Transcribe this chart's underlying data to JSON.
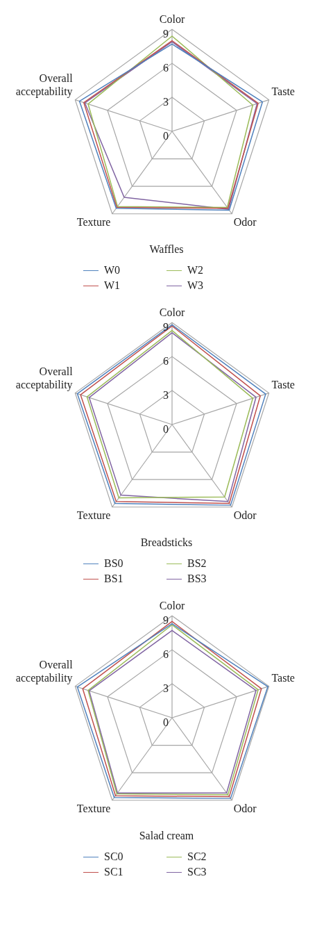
{
  "chart_data": [
    {
      "type": "radar",
      "title": "Waffles",
      "categories": [
        "Color",
        "Taste",
        "Odor",
        "Texture",
        "Overall acceptability"
      ],
      "ylim": [
        0,
        9
      ],
      "yticks": [
        0,
        3,
        6,
        9
      ],
      "legend": "bottom",
      "marker": "none",
      "series": [
        {
          "name": "W0",
          "color": "#4f81bd",
          "values": [
            7.7,
            8.4,
            8.6,
            8.4,
            8.6
          ]
        },
        {
          "name": "W1",
          "color": "#c0504d",
          "values": [
            8.0,
            8.0,
            8.4,
            8.3,
            8.2
          ]
        },
        {
          "name": "W2",
          "color": "#9bbb59",
          "values": [
            8.4,
            7.5,
            8.3,
            8.2,
            7.8
          ]
        },
        {
          "name": "W3",
          "color": "#8064a2",
          "values": [
            7.9,
            7.9,
            8.5,
            7.2,
            8.1
          ]
        }
      ]
    },
    {
      "type": "radar",
      "title": "Breadsticks",
      "categories": [
        "Color",
        "Taste",
        "Odor",
        "Texture",
        "Overall acceptability"
      ],
      "ylim": [
        0,
        9
      ],
      "yticks": [
        0,
        3,
        6,
        9
      ],
      "legend": "bottom",
      "marker": "none",
      "series": [
        {
          "name": "BS0",
          "color": "#4f81bd",
          "values": [
            8.8,
            8.7,
            8.8,
            8.6,
            8.8
          ]
        },
        {
          "name": "BS1",
          "color": "#c0504d",
          "values": [
            8.7,
            8.2,
            8.6,
            8.4,
            8.5
          ]
        },
        {
          "name": "BS2",
          "color": "#9bbb59",
          "values": [
            8.3,
            7.5,
            7.9,
            8.0,
            7.9
          ]
        },
        {
          "name": "BS3",
          "color": "#8064a2",
          "values": [
            8.1,
            7.8,
            8.4,
            7.7,
            7.7
          ]
        }
      ]
    },
    {
      "type": "radar",
      "title": "Salad cream",
      "categories": [
        "Color",
        "Taste",
        "Odor",
        "Texture",
        "Overall acceptability"
      ],
      "ylim": [
        0,
        9
      ],
      "yticks": [
        0,
        3,
        6,
        9
      ],
      "legend": "bottom",
      "marker": "none",
      "series": [
        {
          "name": "SC0",
          "color": "#4f81bd",
          "values": [
            8.3,
            8.9,
            8.8,
            8.7,
            8.8
          ]
        },
        {
          "name": "SC1",
          "color": "#c0504d",
          "values": [
            8.5,
            8.3,
            8.6,
            8.5,
            8.3
          ]
        },
        {
          "name": "SC2",
          "color": "#9bbb59",
          "values": [
            8.2,
            8.0,
            8.4,
            8.3,
            7.8
          ]
        },
        {
          "name": "SC3",
          "color": "#8064a2",
          "values": [
            7.7,
            7.8,
            8.2,
            8.2,
            7.7
          ]
        }
      ]
    }
  ]
}
